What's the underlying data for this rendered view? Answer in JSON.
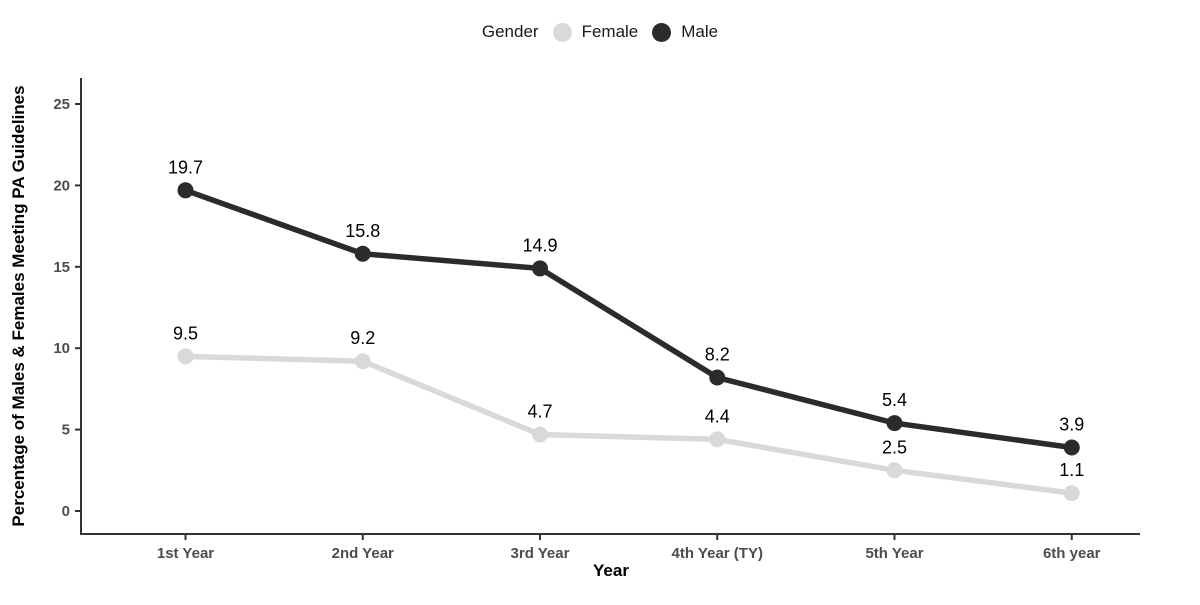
{
  "chart_data": {
    "type": "line",
    "title": "",
    "xlabel": "Year",
    "ylabel": "Percentage of Males & Females Meeting PA Guidelines",
    "categories": [
      "1st Year",
      "2nd Year",
      "3rd Year",
      "4th Year (TY)",
      "5th Year",
      "6th year"
    ],
    "series": [
      {
        "name": "Female",
        "color": "#d9d9d9",
        "values": [
          9.5,
          9.2,
          4.7,
          4.4,
          2.5,
          1.1
        ]
      },
      {
        "name": "Male",
        "color": "#2b2b2b",
        "values": [
          19.7,
          15.8,
          14.9,
          8.2,
          5.4,
          3.9
        ]
      }
    ],
    "yticks": [
      0,
      5,
      10,
      15,
      20,
      25
    ],
    "ylim": [
      0,
      26
    ],
    "grid": false,
    "legend": {
      "title": "Gender",
      "position": "top"
    },
    "data_label_color": "#000000",
    "axis_text_color": "#4d4d4d",
    "axis_line_color": "#333333"
  }
}
